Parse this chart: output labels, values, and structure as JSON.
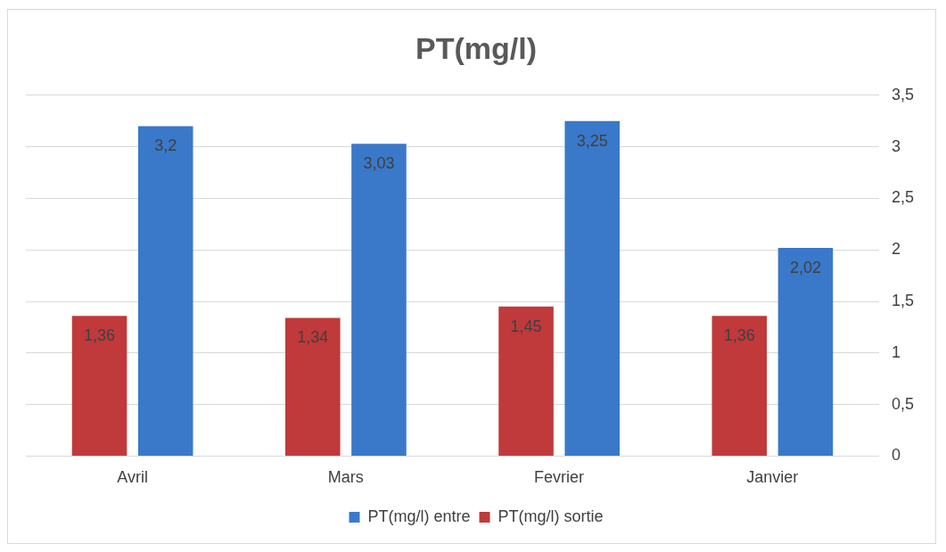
{
  "chart_data": {
    "type": "bar",
    "title": "PT(mg/l)",
    "categories": [
      "Avril",
      "Mars",
      "Fevrier",
      "Janvier"
    ],
    "series": [
      {
        "name": "PT(mg/l) sortie",
        "color": "#c0393b",
        "values": [
          1.36,
          1.34,
          1.45,
          1.36
        ],
        "value_labels": [
          "1,36",
          "1,34",
          "1,45",
          "1,36"
        ]
      },
      {
        "name": "PT(mg/l) entre",
        "color": "#3a78c9",
        "values": [
          3.2,
          3.03,
          3.25,
          2.02
        ],
        "value_labels": [
          "3,2",
          "3,03",
          "3,25",
          "2,02"
        ]
      }
    ],
    "ylim": [
      0,
      3.5
    ],
    "yticks": [
      0,
      {
        "value": 0.5,
        "label": "0,5"
      },
      1,
      {
        "value": 1.5,
        "label": "1,5"
      },
      2,
      {
        "value": 2.5,
        "label": "2,5"
      },
      3,
      {
        "value": 3.5,
        "label": "3,5"
      }
    ],
    "grid": "y",
    "legend": "bottom"
  }
}
